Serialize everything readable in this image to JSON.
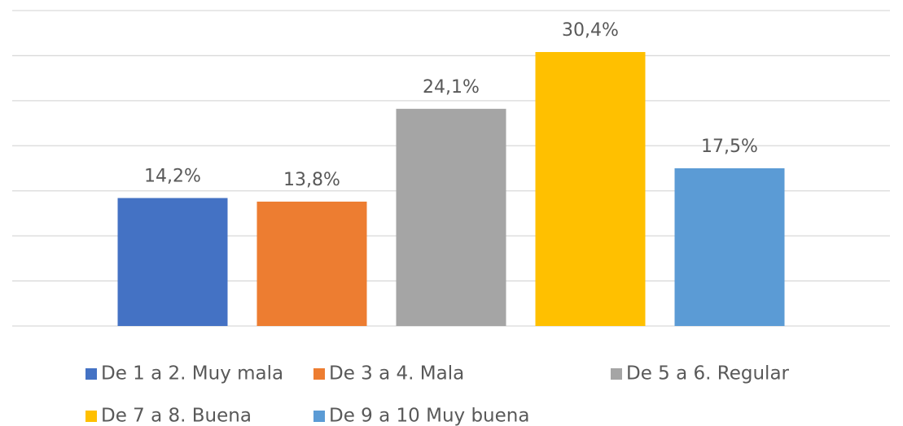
{
  "chart_data": {
    "type": "bar",
    "series": [
      {
        "name": "De 1 a 2. Muy mala",
        "color": "#4472c4",
        "values": [
          14.2
        ],
        "value_labels": [
          "14,2%"
        ]
      },
      {
        "name": "De 3 a 4. Mala",
        "color": "#ed7d31",
        "values": [
          13.8
        ],
        "value_labels": [
          "13,8%"
        ]
      },
      {
        "name": "De 5 a 6. Regular",
        "color": "#a5a5a5",
        "values": [
          24.1
        ],
        "value_labels": [
          "24,1%"
        ]
      },
      {
        "name": "De 7 a 8. Buena",
        "color": "#ffc000",
        "values": [
          30.4
        ],
        "value_labels": [
          "30,4%"
        ]
      },
      {
        "name": "De 9 a 10 Muy buena",
        "color": "#5b9bd5",
        "values": [
          17.5
        ],
        "value_labels": [
          "17,5%"
        ]
      }
    ],
    "ylim": [
      0,
      35
    ],
    "yticks": [
      0,
      5,
      10,
      15,
      20,
      25,
      30,
      35
    ],
    "grid": true,
    "legend": "bottom"
  }
}
